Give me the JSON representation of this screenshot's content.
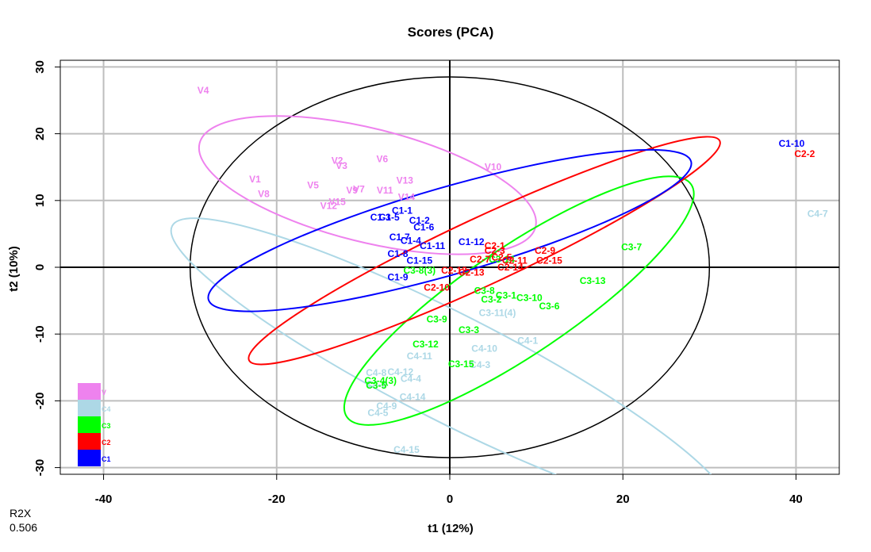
{
  "chart_data": {
    "type": "scatter",
    "title": "Scores (PCA)",
    "xlabel": "t1 (12%)",
    "ylabel": "t2 (10%)",
    "xlim": [
      -45,
      45
    ],
    "ylim": [
      -31,
      31
    ],
    "xticks": [
      -40,
      -20,
      0,
      20,
      40
    ],
    "yticks": [
      -30,
      -20,
      -10,
      0,
      10,
      20,
      30
    ],
    "grid": true,
    "legend_position": "bottom-left",
    "reference_ellipse": {
      "cx": 0,
      "cy": 0,
      "rx": 30,
      "ry": 28.5
    },
    "groups": [
      {
        "name": "V",
        "color": "#ee82ee",
        "ellipse": {
          "cx": -9.5,
          "cy": 12.3,
          "rx": 20,
          "ry": 8.5,
          "angle": -14
        },
        "points": [
          {
            "label": "V4",
            "x": -28.5,
            "y": 26.5
          },
          {
            "label": "V2",
            "x": -13,
            "y": 16
          },
          {
            "label": "V3",
            "x": -12.5,
            "y": 15.2
          },
          {
            "label": "V6",
            "x": -7.8,
            "y": 16.2
          },
          {
            "label": "V1",
            "x": -22.5,
            "y": 13.2
          },
          {
            "label": "V5",
            "x": -15.8,
            "y": 12.3
          },
          {
            "label": "V8",
            "x": -21.5,
            "y": 11
          },
          {
            "label": "V9",
            "x": -11.3,
            "y": 11.5
          },
          {
            "label": "V7",
            "x": -10.5,
            "y": 11.7
          },
          {
            "label": "V13",
            "x": -5.2,
            "y": 13
          },
          {
            "label": "V11",
            "x": -7.5,
            "y": 11.5
          },
          {
            "label": "V14",
            "x": -5,
            "y": 10.5
          },
          {
            "label": "V15",
            "x": -13,
            "y": 9.8
          },
          {
            "label": "V12",
            "x": -14,
            "y": 9.2
          },
          {
            "label": "V10",
            "x": 5,
            "y": 15
          }
        ]
      },
      {
        "name": "C4",
        "color": "#add8e6",
        "ellipse": {
          "cx": 0,
          "cy": -15,
          "rx": 36,
          "ry": 8,
          "angle": -27
        },
        "points": [
          {
            "label": "C4-7",
            "x": 42.5,
            "y": 8
          },
          {
            "label": "C4-1",
            "x": 9,
            "y": -11
          },
          {
            "label": "C4-10",
            "x": 4,
            "y": -12.2
          },
          {
            "label": "C4-11",
            "x": -3.5,
            "y": -13.3
          },
          {
            "label": "C4-3",
            "x": 3.5,
            "y": -14.6
          },
          {
            "label": "C4-12",
            "x": -5.7,
            "y": -15.7
          },
          {
            "label": "C4-8",
            "x": -8.5,
            "y": -15.8
          },
          {
            "label": "C4-4",
            "x": -4.5,
            "y": -16.7
          },
          {
            "label": "C4-6",
            "x": -8.5,
            "y": -17.5
          },
          {
            "label": "C4-14",
            "x": -4.3,
            "y": -19.4
          },
          {
            "label": "C4-9",
            "x": -7.3,
            "y": -20.8
          },
          {
            "label": "C4-5",
            "x": -8.3,
            "y": -21.8
          },
          {
            "label": "C4-15",
            "x": -5,
            "y": -27.3
          },
          {
            "label": "C3-11(4)",
            "x": 5.5,
            "y": -6.8
          }
        ]
      },
      {
        "name": "C3",
        "color": "#00ff00",
        "ellipse": {
          "cx": 8,
          "cy": -5,
          "rx": 24,
          "ry": 8,
          "angle": 34
        },
        "points": [
          {
            "label": "C3-7",
            "x": 21,
            "y": 3
          },
          {
            "label": "C3-13",
            "x": 16.5,
            "y": -2
          },
          {
            "label": "C3-8",
            "x": 4,
            "y": -3.5
          },
          {
            "label": "C3-1",
            "x": 6.5,
            "y": -4.2
          },
          {
            "label": "C3-2",
            "x": 4.8,
            "y": -4.8
          },
          {
            "label": "C3-10",
            "x": 9.2,
            "y": -4.6
          },
          {
            "label": "C3-6",
            "x": 11.5,
            "y": -5.8
          },
          {
            "label": "C3-9",
            "x": -1.5,
            "y": -7.8
          },
          {
            "label": "C3-3",
            "x": 2.2,
            "y": -9.4
          },
          {
            "label": "C3-12",
            "x": -2.8,
            "y": -11.5
          },
          {
            "label": "C3-15",
            "x": 1.3,
            "y": -14.5
          },
          {
            "label": "C3-4(3)",
            "x": -8,
            "y": -17
          },
          {
            "label": "C3-5",
            "x": -8.5,
            "y": -17.7
          },
          {
            "label": "C3-14",
            "x": 6,
            "y": 1.2
          },
          {
            "label": "C3-8(3)",
            "x": -3.5,
            "y": -0.5
          }
        ]
      },
      {
        "name": "C2",
        "color": "#ff0000",
        "ellipse": {
          "cx": 4,
          "cy": 2.5,
          "rx": 30,
          "ry": 5,
          "angle": 25
        },
        "points": [
          {
            "label": "C2-2",
            "x": 41,
            "y": 17
          },
          {
            "label": "C2-9",
            "x": 11,
            "y": 2.5
          },
          {
            "label": "C2-15",
            "x": 11.5,
            "y": 1
          },
          {
            "label": "C2-1",
            "x": 5.2,
            "y": 3.2
          },
          {
            "label": "C2-3",
            "x": 5.2,
            "y": 2.5
          },
          {
            "label": "C2-5",
            "x": 6,
            "y": 1.5
          },
          {
            "label": "C2-11",
            "x": 7.5,
            "y": 1
          },
          {
            "label": "C2-7",
            "x": 3.5,
            "y": 1.2
          },
          {
            "label": "C2-14",
            "x": 7,
            "y": 0
          },
          {
            "label": "C2-13",
            "x": 2.5,
            "y": -0.8
          },
          {
            "label": "C2-12",
            "x": 0.5,
            "y": -0.5
          },
          {
            "label": "C2-10",
            "x": -1.5,
            "y": -3
          }
        ]
      },
      {
        "name": "C1",
        "color": "#0000ff",
        "ellipse": {
          "cx": 0,
          "cy": 5.5,
          "rx": 29,
          "ry": 6.5,
          "angle": 16
        },
        "points": [
          {
            "label": "C1-10",
            "x": 39.5,
            "y": 18.5
          },
          {
            "label": "C1-1",
            "x": -5.5,
            "y": 8.5
          },
          {
            "label": "C1-3",
            "x": -8,
            "y": 7.5
          },
          {
            "label": "C1-5",
            "x": -7,
            "y": 7.5
          },
          {
            "label": "C1-2",
            "x": -3.5,
            "y": 7
          },
          {
            "label": "C1-6",
            "x": -3,
            "y": 6
          },
          {
            "label": "C1-7",
            "x": -5.8,
            "y": 4.5
          },
          {
            "label": "C1-4",
            "x": -4.5,
            "y": 4
          },
          {
            "label": "C1-11",
            "x": -2,
            "y": 3.2
          },
          {
            "label": "C1-8",
            "x": -6,
            "y": 2
          },
          {
            "label": "C1-15",
            "x": -3.5,
            "y": 1
          },
          {
            "label": "C1-9",
            "x": -6,
            "y": -1.5
          },
          {
            "label": "C1-12",
            "x": 2.5,
            "y": 3.8
          }
        ]
      }
    ]
  },
  "r2x": {
    "label": "R2X",
    "value": "0.506"
  }
}
